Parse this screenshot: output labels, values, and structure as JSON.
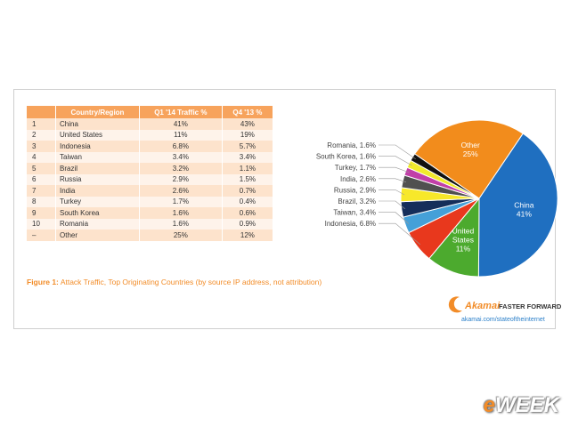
{
  "table": {
    "headers": [
      "",
      "Country/Region",
      "Q1 '14 Traffic %",
      "Q4 '13 %"
    ],
    "rows": [
      [
        "1",
        "China",
        "41%",
        "43%"
      ],
      [
        "2",
        "United States",
        "11%",
        "19%"
      ],
      [
        "3",
        "Indonesia",
        "6.8%",
        "5.7%"
      ],
      [
        "4",
        "Taiwan",
        "3.4%",
        "3.4%"
      ],
      [
        "5",
        "Brazil",
        "3.2%",
        "1.1%"
      ],
      [
        "6",
        "Russia",
        "2.9%",
        "1.5%"
      ],
      [
        "7",
        "India",
        "2.6%",
        "0.7%"
      ],
      [
        "8",
        "Turkey",
        "1.7%",
        "0.4%"
      ],
      [
        "9",
        "South Korea",
        "1.6%",
        "0.6%"
      ],
      [
        "10",
        "Romania",
        "1.6%",
        "0.9%"
      ],
      [
        "–",
        "Other",
        "25%",
        "12%"
      ]
    ]
  },
  "caption": {
    "figure": "Figure 1:",
    "text": "Attack Traffic, Top Originating Countries (by source IP address, not attribution)"
  },
  "chart_data": {
    "type": "pie",
    "slices": [
      {
        "label": "China",
        "value": 41,
        "display": "41%",
        "color": "#1f6fc0",
        "label_inside": true
      },
      {
        "label": "United States",
        "value": 11,
        "display": "11%",
        "color": "#4caa2e",
        "label_inside": true
      },
      {
        "label": "Indonesia",
        "value": 6.8,
        "display": "6.8%",
        "color": "#e8381d",
        "label_inside": false
      },
      {
        "label": "Taiwan",
        "value": 3.4,
        "display": "3.4%",
        "color": "#45a0d8",
        "label_inside": false
      },
      {
        "label": "Brazil",
        "value": 3.2,
        "display": "3.2%",
        "color": "#152e5a",
        "label_inside": false
      },
      {
        "label": "Russia",
        "value": 2.9,
        "display": "2.9%",
        "color": "#f7e82a",
        "label_inside": false
      },
      {
        "label": "India",
        "value": 2.6,
        "display": "2.6%",
        "color": "#505050",
        "label_inside": false
      },
      {
        "label": "Turkey",
        "value": 1.7,
        "display": "1.7%",
        "color": "#c13fa8",
        "label_inside": false
      },
      {
        "label": "South Korea",
        "value": 1.6,
        "display": "1.6%",
        "color": "#f0ea2c",
        "label_inside": false
      },
      {
        "label": "Romania",
        "value": 1.6,
        "display": "1.6%",
        "color": "#111111",
        "label_inside": false
      },
      {
        "label": "Other",
        "value": 25,
        "display": "25%",
        "color": "#f28c1c",
        "label_inside": true
      }
    ],
    "start_angle_deg": 34
  },
  "branding": {
    "logo_name": "Akamai",
    "tagline": "FASTER FORWARD",
    "url": "akamai.com/stateoftheinternet",
    "watermark_e": "e",
    "watermark_rest": "WEEK"
  },
  "colors": {
    "header": "#f7a35c",
    "row_odd": "#fde3cc",
    "row_even": "#fef3ea",
    "accent": "#f28c28"
  }
}
